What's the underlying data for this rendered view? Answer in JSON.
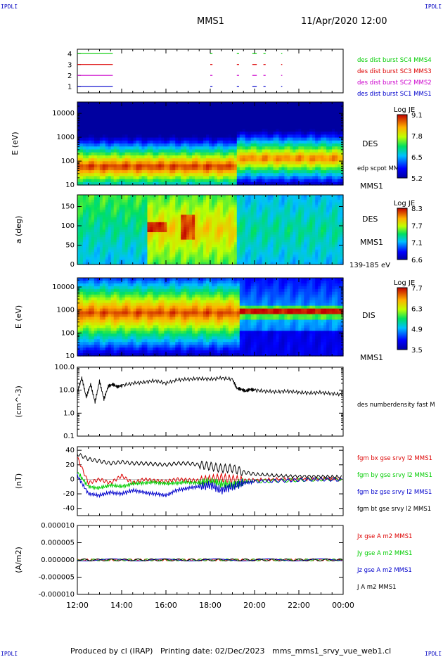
{
  "corner_labels": {
    "tl": "IPDLI",
    "tr": "IPDLI",
    "bl": "IPDLI",
    "br": "IPDLI"
  },
  "header": {
    "spacecraft": "MMS1",
    "datetime": "11/Apr/2020 12:00"
  },
  "footer": {
    "produced": "Produced by cl (IRAP)",
    "printing": "Printing date: 02/Dec/2023",
    "script": "mms_mms1_srvy_vue_web1.cl"
  },
  "colors": {
    "red": "#dd0000",
    "green": "#00cc00",
    "blue": "#0000cc",
    "magenta": "#cc00cc",
    "black": "#000000"
  },
  "chart_data": [
    {
      "id": "burst-flags",
      "type": "scatter",
      "yticks": [
        "1",
        "2",
        "3",
        "4"
      ],
      "series": [
        {
          "name": "des dist burst SC1 MMS1",
          "color": "#0000cc",
          "level": 1,
          "segments": [
            [
              12.0,
              13.6
            ],
            [
              18.0,
              18.1
            ],
            [
              19.2,
              19.3
            ],
            [
              19.9,
              20.1
            ],
            [
              20.4,
              20.5
            ],
            [
              21.2,
              21.25
            ]
          ]
        },
        {
          "name": "des dist burst SC2 MMS2",
          "color": "#cc00cc",
          "level": 2,
          "segments": [
            [
              12.0,
              13.6
            ],
            [
              18.0,
              18.1
            ],
            [
              19.2,
              19.3
            ],
            [
              19.9,
              20.1
            ],
            [
              20.4,
              20.5
            ],
            [
              21.2,
              21.25
            ]
          ]
        },
        {
          "name": "des dist burst SC3 MMS3",
          "color": "#dd0000",
          "level": 3,
          "segments": [
            [
              12.0,
              13.6
            ],
            [
              18.0,
              18.1
            ],
            [
              19.2,
              19.3
            ],
            [
              19.9,
              20.1
            ],
            [
              20.4,
              20.5
            ],
            [
              21.2,
              21.25
            ]
          ]
        },
        {
          "name": "des dist burst SC4 MMS4",
          "color": "#00cc00",
          "level": 4,
          "segments": [
            [
              12.0,
              13.6
            ],
            [
              18.0,
              18.1
            ],
            [
              19.2,
              19.3
            ],
            [
              19.9,
              20.1
            ],
            [
              20.4,
              20.5
            ],
            [
              21.2,
              21.25
            ]
          ]
        }
      ]
    },
    {
      "id": "des-energy",
      "type": "heatmap",
      "ylabel": "E (eV)",
      "ylog": true,
      "ylim": [
        10,
        30000
      ],
      "yticks": [
        "10",
        "100",
        "1000",
        "10000"
      ],
      "label": "DES",
      "sublabel": "MMS1",
      "overlay_name": "edp scpot MMS1",
      "colorbar": {
        "title": "Log JE",
        "ticks": [
          "9.1",
          "7.8",
          "6.5",
          "5.2"
        ],
        "min": 5.2,
        "max": 9.1
      }
    },
    {
      "id": "des-pitch",
      "type": "heatmap",
      "ylabel": "a (deg)",
      "ylim": [
        0,
        180
      ],
      "yticks": [
        "0",
        "50",
        "100",
        "150"
      ],
      "label": "DES",
      "sublabel": "MMS1",
      "energy_range": "139-185 eV",
      "colorbar": {
        "title": "Log JE",
        "ticks": [
          "8.3",
          "7.7",
          "7.1",
          "6.6"
        ],
        "min": 6.6,
        "max": 8.3
      }
    },
    {
      "id": "dis-energy",
      "type": "heatmap",
      "ylabel": "E (eV)",
      "ylog": true,
      "ylim": [
        10,
        25000
      ],
      "yticks": [
        "10",
        "100",
        "1000",
        "10000"
      ],
      "label": "DIS",
      "sublabel": "MMS1",
      "colorbar": {
        "title": "Log JE",
        "ticks": [
          "7.7",
          "6.3",
          "4.9",
          "3.5"
        ],
        "min": 3.5,
        "max": 7.7
      }
    },
    {
      "id": "density",
      "type": "line",
      "ylabel": "(cm^-3)",
      "ylog": true,
      "ylim": [
        0.1,
        100
      ],
      "yticks": [
        "0.1",
        "1.0",
        "10.0",
        "100.0"
      ],
      "series": [
        {
          "name": "des numberdensity fast M",
          "color": "#000000",
          "x": [
            12.0,
            12.2,
            12.4,
            12.6,
            12.8,
            13.0,
            13.2,
            13.4,
            13.6,
            13.8,
            14.0,
            14.5,
            15.0,
            15.5,
            16.0,
            16.5,
            17.0,
            17.5,
            18.0,
            18.5,
            19.0,
            19.2,
            19.4,
            19.6,
            19.8,
            20.0,
            20.5,
            21.0,
            21.5,
            22.0,
            22.5,
            23.0,
            23.5,
            24.0
          ],
          "y": [
            8,
            35,
            5,
            18,
            3,
            25,
            4,
            15,
            18,
            14,
            16,
            20,
            22,
            26,
            20,
            28,
            30,
            32,
            30,
            34,
            30,
            12,
            11,
            9,
            11,
            10,
            9,
            8.5,
            9,
            8,
            7.5,
            8,
            7,
            6.5
          ]
        }
      ]
    },
    {
      "id": "magnetic-field",
      "type": "line",
      "ylabel": "(nT)",
      "ylim": [
        -50,
        45
      ],
      "yticks": [
        "-40",
        "-20",
        "0",
        "20",
        "40"
      ],
      "series": [
        {
          "name": "fgm bx gse srvy l2 MMS1",
          "color": "#dd0000",
          "x": [
            12,
            12.5,
            13,
            13.5,
            14,
            14.5,
            15,
            15.5,
            16,
            16.5,
            17,
            17.5,
            18,
            18.5,
            19,
            19.5,
            20,
            21,
            22,
            23,
            24
          ],
          "y": [
            30,
            -5,
            0,
            -5,
            5,
            -5,
            0,
            -2,
            -3,
            0,
            -1,
            -2,
            0,
            2,
            0,
            -2,
            -1,
            0,
            0,
            1,
            0
          ]
        },
        {
          "name": "fgm by gse srvy l2 MMS1",
          "color": "#00cc00",
          "x": [
            12,
            12.5,
            13,
            13.5,
            14,
            14.5,
            15,
            15.5,
            16,
            16.5,
            17,
            17.5,
            18,
            18.5,
            19,
            19.5,
            20,
            21,
            22,
            23,
            24
          ],
          "y": [
            10,
            -10,
            -12,
            -8,
            -10,
            -6,
            -5,
            -4,
            -6,
            -5,
            -4,
            -5,
            -3,
            -6,
            -8,
            -4,
            -3,
            -2,
            -1,
            0,
            0
          ]
        },
        {
          "name": "fgm bz gse srvy l2 MMS1",
          "color": "#0000cc",
          "x": [
            12,
            12.5,
            13,
            13.5,
            14,
            14.5,
            15,
            15.5,
            16,
            16.5,
            17,
            17.5,
            18,
            18.5,
            19,
            19.5,
            20,
            21,
            22,
            23,
            24
          ],
          "y": [
            5,
            -20,
            -22,
            -18,
            -20,
            -15,
            -18,
            -20,
            -22,
            -15,
            -12,
            -10,
            -8,
            -15,
            -10,
            -5,
            -3,
            -2,
            -1,
            0,
            -1
          ]
        },
        {
          "name": "fgm bt gse srvy l2 MMS1",
          "color": "#000000",
          "x": [
            12,
            12.5,
            13,
            13.5,
            14,
            14.5,
            15,
            15.5,
            16,
            16.5,
            17,
            17.5,
            18,
            18.5,
            19,
            19.5,
            20,
            21,
            22,
            23,
            24
          ],
          "y": [
            35,
            28,
            25,
            22,
            24,
            22,
            22,
            21,
            20,
            22,
            22,
            20,
            18,
            15,
            15,
            10,
            7,
            5,
            4,
            4,
            3
          ]
        }
      ]
    },
    {
      "id": "current-density",
      "type": "line",
      "ylabel": "(A/m2)",
      "ylim": [
        -1e-05,
        1e-05
      ],
      "yticks": [
        "-0.000010",
        "-0.000005",
        "0.000000",
        "0.000005",
        "0.000010"
      ],
      "series": [
        {
          "name": "Jx gse A m2 MMS1",
          "color": "#dd0000"
        },
        {
          "name": "Jy gse A m2 MMS1",
          "color": "#00cc00"
        },
        {
          "name": "Jz gse A m2 MMS1",
          "color": "#0000cc"
        },
        {
          "name": "J A m2 MMS1",
          "color": "#000000"
        }
      ]
    }
  ],
  "time_axis": {
    "xlim": [
      12,
      24
    ],
    "tick_hours": [
      12,
      14,
      16,
      18,
      20,
      22,
      24
    ],
    "tick_labels": [
      "12:00",
      "14:00",
      "16:00",
      "18:00",
      "20:00",
      "22:00",
      "00:00"
    ]
  }
}
